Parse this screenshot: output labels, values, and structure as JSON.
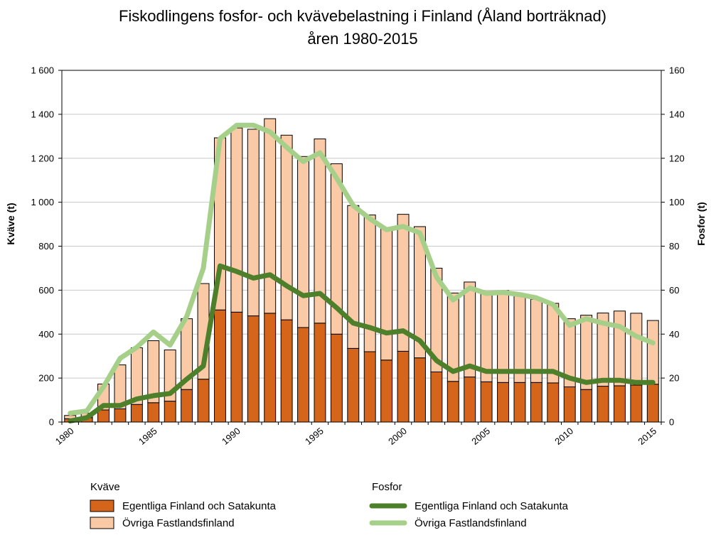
{
  "chart_data": {
    "type": "bar",
    "title_lines": [
      "Fiskodlingens fosfor- och kvävebelastning i Finland (Åland borträknad)",
      "åren 1980-2015"
    ],
    "ylabel_left": "Kväve (t)",
    "ylabel_right": "Fosfor (t)",
    "ylim_left": [
      0,
      1600
    ],
    "ylim_right": [
      0,
      160
    ],
    "yticks_left": [
      "0",
      "200",
      "400",
      "600",
      "800",
      "1 000",
      "1 200",
      "1 400",
      "1 600"
    ],
    "yticks_right": [
      "0",
      "20",
      "40",
      "60",
      "80",
      "100",
      "120",
      "140",
      "160"
    ],
    "x": [
      1980,
      1981,
      1982,
      1983,
      1984,
      1985,
      1986,
      1987,
      1988,
      1989,
      1990,
      1991,
      1992,
      1993,
      1994,
      1995,
      1996,
      1997,
      1998,
      1999,
      2000,
      2001,
      2002,
      2003,
      2004,
      2005,
      2006,
      2007,
      2008,
      2009,
      2010,
      2011,
      2012,
      2013,
      2014,
      2015
    ],
    "xtick_labels": [
      "1980",
      "1985",
      "1990",
      "1995",
      "2000",
      "2005",
      "2010",
      "2015"
    ],
    "bar_series": [
      {
        "name": "Egentliga Finland och Satakunta",
        "color": "#D4651A",
        "values": [
          15,
          20,
          55,
          60,
          80,
          88,
          95,
          148,
          195,
          510,
          500,
          483,
          495,
          465,
          430,
          450,
          400,
          335,
          320,
          282,
          322,
          292,
          228,
          185,
          205,
          183,
          180,
          180,
          180,
          178,
          160,
          148,
          163,
          165,
          168,
          172
        ]
      },
      {
        "name": "Övriga Fastlandsfinland",
        "color": "#FAC9A6",
        "values": [
          15,
          20,
          118,
          200,
          258,
          282,
          233,
          322,
          435,
          783,
          838,
          849,
          885,
          840,
          778,
          838,
          775,
          650,
          622,
          598,
          623,
          597,
          472,
          402,
          432,
          412,
          418,
          402,
          378,
          362,
          310,
          338,
          333,
          340,
          327,
          290
        ]
      }
    ],
    "line_series": [
      {
        "name": "Egentliga Finland och Satakunta",
        "color": "#4E7F2A",
        "values": [
          0.5,
          2,
          7.5,
          7.5,
          10.5,
          12,
          13,
          19.5,
          25.5,
          71,
          68.5,
          65.5,
          67,
          62,
          57.5,
          58.5,
          52,
          45,
          43,
          40.5,
          41.5,
          37,
          28,
          23,
          25.5,
          23,
          23,
          23,
          23,
          23,
          20,
          18,
          19,
          19,
          18,
          18
        ]
      },
      {
        "name": "Övriga Fastlandsfinland",
        "color": "#A6D08A",
        "values": [
          4,
          5,
          16,
          29,
          34,
          41,
          35,
          48,
          70,
          129,
          135,
          135,
          132,
          125,
          118.5,
          122.5,
          111,
          98.5,
          92.5,
          87.5,
          89,
          86,
          66,
          55.5,
          61,
          58.5,
          59,
          58,
          56.5,
          53.5,
          44,
          47,
          45,
          43.5,
          39,
          36
        ]
      }
    ],
    "legend": {
      "kvave_heading": "Kväve",
      "fosfor_heading": "Fosfor"
    },
    "grid": true
  }
}
